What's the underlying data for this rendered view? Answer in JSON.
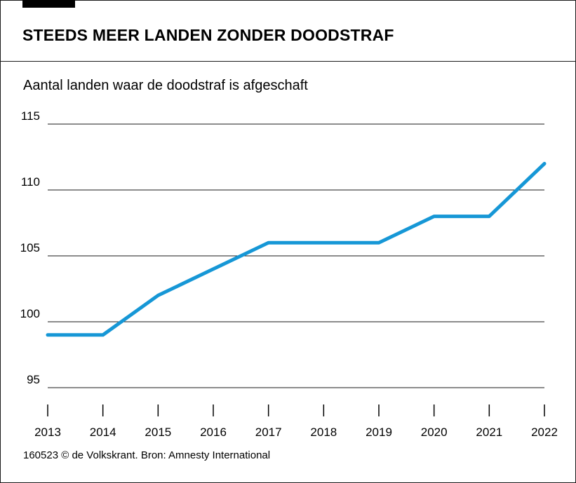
{
  "header": {
    "title": "STEEDS MEER LANDEN ZONDER DOODSTRAF",
    "subtitle": "Aantal landen waar de doodstraf is afgeschaft"
  },
  "footer": {
    "source": "160523 © de Volkskrant. Bron: Amnesty International"
  },
  "colors": {
    "line": "#1697d6",
    "grid": "#1a1a1a"
  },
  "chart_data": {
    "type": "line",
    "title": "STEEDS MEER LANDEN ZONDER DOODSTRAF",
    "subtitle": "Aantal landen waar de doodstraf is afgeschaft",
    "xlabel": "",
    "ylabel": "",
    "x": [
      "2013",
      "2014",
      "2015",
      "2016",
      "2017",
      "2018",
      "2019",
      "2020",
      "2021",
      "2022"
    ],
    "series": [
      {
        "values": [
          99,
          99,
          102,
          104,
          106,
          106,
          106,
          108,
          108,
          112
        ]
      }
    ],
    "ylim": [
      95,
      115
    ],
    "yticks": [
      "95",
      "100",
      "105",
      "110",
      "115"
    ],
    "grid": "horizontal",
    "legend": "none"
  }
}
